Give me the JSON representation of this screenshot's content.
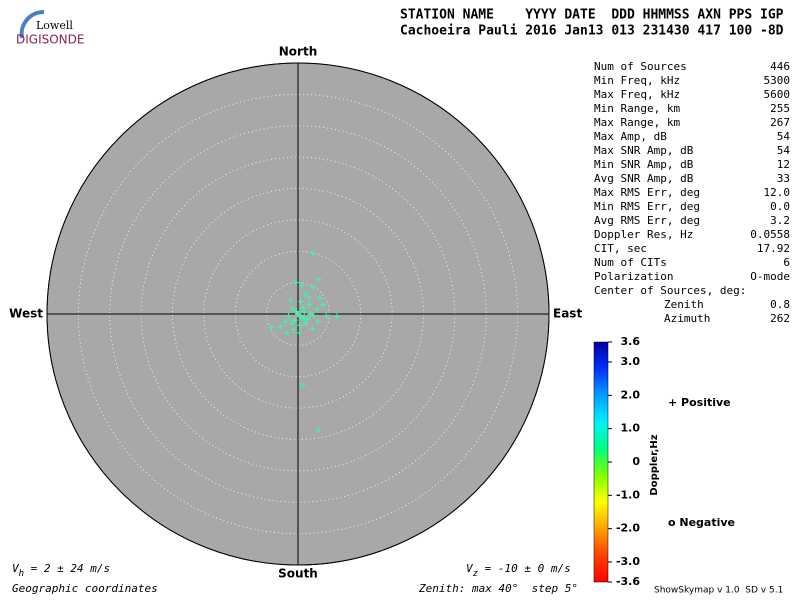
{
  "logo": {
    "top": "Lowell",
    "bottom": "DIGISONDE"
  },
  "header": {
    "labels": "STATION NAME    YYYY DATE  DDD HHMMSS AXN PPS IGP",
    "values": "Cachoeira Pauli 2016 Jan13 013 231430 417 100 -8D"
  },
  "stats": {
    "rows": [
      [
        "Num of Sources",
        "446"
      ],
      [
        "Min Freq, kHz",
        "5300"
      ],
      [
        "Max Freq, kHz",
        "5600"
      ],
      [
        "Min Range, km",
        "255"
      ],
      [
        "Max Range, km",
        "267"
      ],
      [
        "Max Amp, dB",
        "54"
      ],
      [
        "Max SNR Amp, dB",
        "54"
      ],
      [
        "Min SNR Amp, dB",
        "12"
      ],
      [
        "Avg SNR Amp, dB",
        "33"
      ],
      [
        "Max RMS Err, deg",
        "12.0"
      ],
      [
        "Min RMS Err, deg",
        "0.0"
      ],
      [
        "Avg RMS Err, deg",
        "3.2"
      ],
      [
        "Doppler Res, Hz",
        "0.0558"
      ],
      [
        "CIT, sec",
        "17.92"
      ],
      [
        "Num of CITs",
        "6"
      ],
      [
        "Polarization",
        "O-mode"
      ]
    ],
    "center_title": "Center of Sources, deg:",
    "center_rows": [
      [
        "Zenith",
        "0.8"
      ],
      [
        "Azimuth",
        "262"
      ]
    ]
  },
  "footer": {
    "vh_symbol": "V",
    "vh_sub": "h",
    "vh_text": " = 2 ± 24 m/s",
    "vz_symbol": "V",
    "vz_sub": "z",
    "vz_text": " = -10 ± 0 m/s",
    "coords": "Geographic coordinates",
    "zenith": "Zenith: max 40°  step 5°",
    "version": "ShowSkymap v 1.0  SD v 5.1"
  },
  "chart_data": {
    "type": "skymap",
    "directions": {
      "north": "North",
      "south": "South",
      "east": "East",
      "west": "West"
    },
    "rlim": [
      0,
      40
    ],
    "rticks": [
      5,
      10,
      15,
      20,
      25,
      30,
      35,
      40
    ],
    "series": [
      {
        "name": "+ Positive",
        "color": "#33ffaa",
        "x": [
          0,
          0.5,
          1,
          -0.5,
          1.5,
          -1,
          0.8,
          2,
          -1.5,
          0.3,
          1.2,
          -2,
          2.5,
          -0.8,
          1.8,
          0.5,
          3,
          -2.8,
          -1.8,
          0.2,
          3.5,
          2.5,
          -0.3,
          0.6,
          1.2,
          4.5,
          6.2,
          -0.7,
          -4.2,
          2.3,
          3.2,
          4,
          3.3,
          1.8,
          -1.2,
          0.9,
          -0.2,
          2.4,
          0.8,
          3.3
        ],
        "y": [
          0,
          -0.5,
          0.3,
          -1,
          -0.8,
          -1.5,
          1,
          0,
          -0.3,
          -1.8,
          -1.5,
          -1.2,
          -0.2,
          0.8,
          1.5,
          2,
          0.8,
          -2,
          -3,
          -3,
          2.5,
          4.2,
          5,
          4.5,
          3.2,
          -0.3,
          -0.4,
          -2.5,
          -2.2,
          -2.3,
          -1.2,
          1.5,
          5.5,
          2.6,
          2.2,
          -0.6,
          0.4,
          9.7,
          -11.3,
          -18.5
        ]
      }
    ],
    "legend_negative": "o Negative",
    "legend_positive_color": "#0000cc",
    "legend_negative_color": "#cc0000",
    "colorbar": {
      "label": "Doppler,Hz",
      "lim": [
        -3.6,
        3.6
      ],
      "ticks": [
        3.6,
        {
          "value": 3,
          "label": "3.0"
        },
        {
          "value": 2,
          "label": "2.0"
        },
        {
          "value": 1,
          "label": "1.0"
        },
        0,
        {
          "value": -1,
          "label": "-1.0"
        },
        {
          "value": -2,
          "label": "-2.0"
        },
        {
          "value": -3,
          "label": "-3.0"
        },
        -3.6
      ],
      "colors": [
        "#0000a0",
        "#0030ff",
        "#00a0ff",
        "#00f0ff",
        "#00ff80",
        "#80ff00",
        "#ffff00",
        "#ffa000",
        "#ff4000",
        "#ff0000"
      ]
    }
  }
}
